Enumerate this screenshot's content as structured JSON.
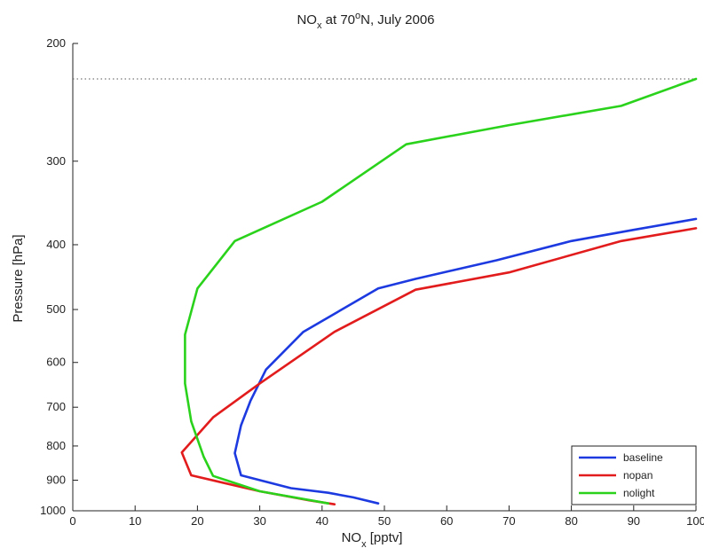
{
  "chart_data": {
    "type": "line",
    "title": {
      "prefix": "NO",
      "subscript": "x",
      "middle": " at 70",
      "superscript": "o",
      "suffix": "N, July 2006"
    },
    "xlabel": {
      "prefix": "NO",
      "subscript": "x",
      "suffix": " [pptv]"
    },
    "ylabel": "Pressure [hPa]",
    "xlim": [
      0,
      100
    ],
    "ylim": [
      200,
      1000
    ],
    "y_scale": "log",
    "y_reversed": true,
    "x_ticks": [
      0,
      10,
      20,
      30,
      40,
      50,
      60,
      70,
      80,
      90,
      100
    ],
    "x_tick_labels": [
      "0",
      "10",
      "20",
      "30",
      "40",
      "50",
      "60",
      "70",
      "80",
      "90",
      "100"
    ],
    "y_ticks": [
      200,
      300,
      400,
      500,
      600,
      700,
      800,
      900,
      1000
    ],
    "y_tick_labels": [
      "200",
      "300",
      "400",
      "500",
      "600",
      "700",
      "800",
      "900",
      "1000"
    ],
    "reference_line": {
      "y": 226,
      "style": "dotted"
    },
    "grid": false,
    "legend_position": "bottom-right",
    "series": [
      {
        "name": "baseline",
        "color": "#1c3ae0",
        "points": [
          {
            "x": 49,
            "y": 975
          },
          {
            "x": 45,
            "y": 955
          },
          {
            "x": 41,
            "y": 940
          },
          {
            "x": 35,
            "y": 925
          },
          {
            "x": 27,
            "y": 885
          },
          {
            "x": 26,
            "y": 820
          },
          {
            "x": 27,
            "y": 745
          },
          {
            "x": 28.5,
            "y": 685
          },
          {
            "x": 31,
            "y": 615
          },
          {
            "x": 37,
            "y": 540
          },
          {
            "x": 49,
            "y": 465
          },
          {
            "x": 55,
            "y": 450
          },
          {
            "x": 68,
            "y": 422
          },
          {
            "x": 80,
            "y": 395
          },
          {
            "x": 90,
            "y": 380
          },
          {
            "x": 100,
            "y": 366
          }
        ]
      },
      {
        "name": "nopan",
        "color": "#e21c1c",
        "points": [
          {
            "x": 42,
            "y": 978
          },
          {
            "x": 38,
            "y": 965
          },
          {
            "x": 30,
            "y": 935
          },
          {
            "x": 19,
            "y": 885
          },
          {
            "x": 17.5,
            "y": 818
          },
          {
            "x": 22.5,
            "y": 725
          },
          {
            "x": 30,
            "y": 645
          },
          {
            "x": 42,
            "y": 540
          },
          {
            "x": 55,
            "y": 467
          },
          {
            "x": 70,
            "y": 440
          },
          {
            "x": 88,
            "y": 395
          },
          {
            "x": 100,
            "y": 378
          }
        ]
      },
      {
        "name": "nolight",
        "color": "#2ad21c",
        "points": [
          {
            "x": 41,
            "y": 975
          },
          {
            "x": 30,
            "y": 935
          },
          {
            "x": 22.5,
            "y": 887
          },
          {
            "x": 21,
            "y": 830
          },
          {
            "x": 19,
            "y": 735
          },
          {
            "x": 18,
            "y": 645
          },
          {
            "x": 18,
            "y": 545
          },
          {
            "x": 20,
            "y": 465
          },
          {
            "x": 26,
            "y": 395
          },
          {
            "x": 40,
            "y": 345
          },
          {
            "x": 53.5,
            "y": 283
          },
          {
            "x": 70,
            "y": 265
          },
          {
            "x": 88,
            "y": 248
          },
          {
            "x": 100,
            "y": 226
          }
        ]
      }
    ]
  }
}
